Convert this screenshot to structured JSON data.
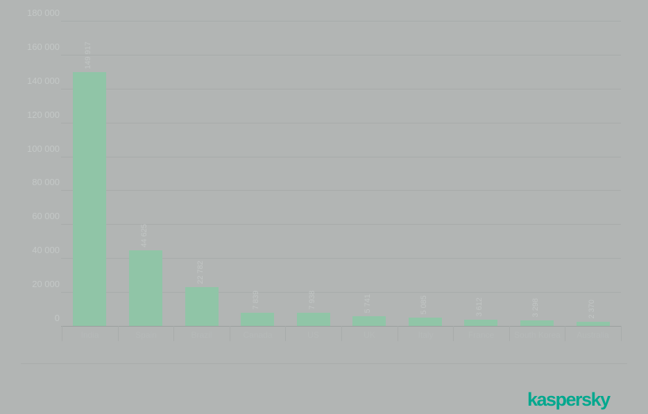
{
  "page": {
    "background_color": "#b2b5b4"
  },
  "chart_data": {
    "type": "bar",
    "title": "",
    "categories": [
      "India",
      "Spain",
      "Brazil",
      "Canada",
      "US",
      "UK",
      "Italy",
      "France",
      "South Korea",
      "Australia"
    ],
    "values": [
      149917,
      44625,
      22782,
      7839,
      7938,
      5741,
      5085,
      3612,
      3298,
      2370
    ],
    "value_labels": [
      "149 917",
      "44 625",
      "22 782",
      "7 839",
      "7 938",
      "5 741",
      "5 085",
      "3 612",
      "3 298",
      "2 370"
    ],
    "xlabel": "",
    "ylabel": "",
    "ylim": [
      0,
      180000
    ],
    "y_tick_step": 20000,
    "y_tick_labels": [
      "0",
      "20 000",
      "40 000",
      "60 000",
      "80 000",
      "100 000",
      "120 000",
      "140 000",
      "160 000",
      "180 000"
    ],
    "grid": true,
    "legend": "none",
    "bar_color": "#90c5a7",
    "gridline_color": "#a7abaa",
    "axis_line_color": "#9a9e9d",
    "tick_label_color": "#c4c8c7"
  },
  "footer": {
    "logo_text": "kaspersky",
    "logo_color": "#00a88e"
  }
}
